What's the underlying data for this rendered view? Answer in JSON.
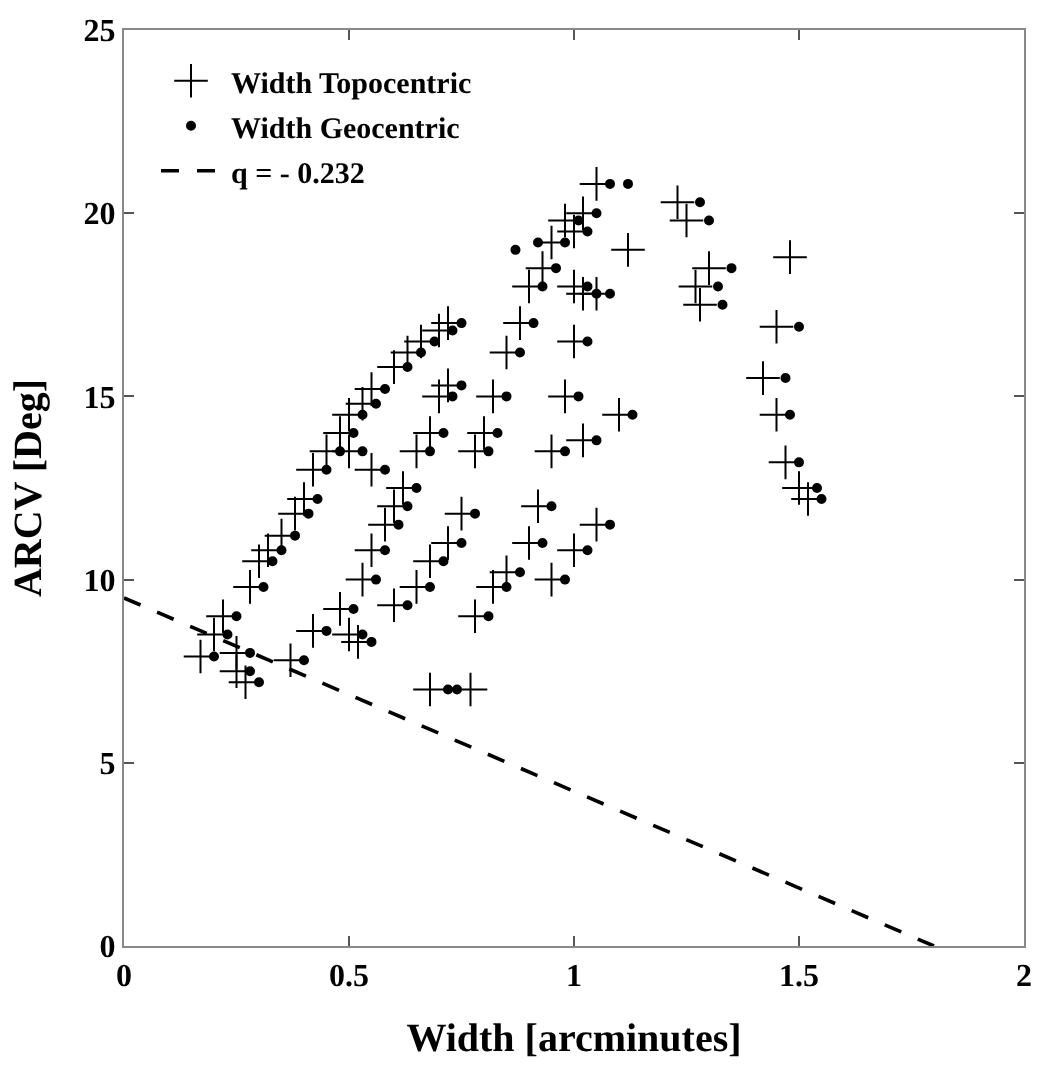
{
  "chart_data": {
    "type": "scatter",
    "xlabel": "Width [arcminutes]",
    "ylabel": "ARCV [Deg]",
    "xlim": [
      0,
      2
    ],
    "xticks": [
      0,
      0.5,
      1,
      1.5,
      2
    ],
    "ylim": [
      0,
      25
    ],
    "yticks": [
      0,
      5,
      10,
      15,
      20,
      25
    ],
    "legend": "top left",
    "series": [
      {
        "name": "Width Topocentric",
        "color": "#000000",
        "marker": "cross",
        "x": [
          0.17,
          0.2,
          0.22,
          0.25,
          0.27,
          0.25,
          0.28,
          0.3,
          0.32,
          0.35,
          0.38,
          0.4,
          0.42,
          0.45,
          0.48,
          0.5,
          0.53,
          0.55,
          0.6,
          0.63,
          0.66,
          0.7,
          0.72,
          0.37,
          0.42,
          0.48,
          0.5,
          0.52,
          0.53,
          0.55,
          0.58,
          0.6,
          0.62,
          0.65,
          0.68,
          0.7,
          0.72,
          0.5,
          0.55,
          0.6,
          0.65,
          0.68,
          0.72,
          0.75,
          0.78,
          0.8,
          0.82,
          0.85,
          0.88,
          0.9,
          0.93,
          0.95,
          0.98,
          1.02,
          1.05,
          1.0,
          0.78,
          0.82,
          0.85,
          0.9,
          0.92,
          0.95,
          0.98,
          1.0,
          1.02,
          1.05,
          1.0,
          1.1,
          1.12,
          0.95,
          1.0,
          1.05,
          1.02,
          1.23,
          1.25,
          1.27,
          1.28,
          1.3,
          1.45,
          1.42,
          1.45,
          1.47,
          1.5,
          1.52,
          1.48,
          0.68,
          0.77
        ],
        "values": [
          7.9,
          8.5,
          9.0,
          7.5,
          7.2,
          8.0,
          9.8,
          10.5,
          10.8,
          11.2,
          11.8,
          12.2,
          13.0,
          13.5,
          14.0,
          14.5,
          14.8,
          15.2,
          15.8,
          16.2,
          16.5,
          16.8,
          17.0,
          7.8,
          8.6,
          9.2,
          8.5,
          8.3,
          10.0,
          10.8,
          11.5,
          12.0,
          12.5,
          13.5,
          14.0,
          15.0,
          15.3,
          13.5,
          13.0,
          9.3,
          9.8,
          10.5,
          11.0,
          11.8,
          13.5,
          14.0,
          15.0,
          16.2,
          17.0,
          18.0,
          18.5,
          19.2,
          19.8,
          20.0,
          20.8,
          19.5,
          9.0,
          9.8,
          10.2,
          11.0,
          12.0,
          13.5,
          15.0,
          16.5,
          17.8,
          17.8,
          18.0,
          14.5,
          19.0,
          10.0,
          10.8,
          11.5,
          13.8,
          20.3,
          19.8,
          18.0,
          17.5,
          18.5,
          16.9,
          15.5,
          14.5,
          13.2,
          12.5,
          12.2,
          18.8,
          7.0,
          7.0
        ]
      },
      {
        "name": "Width Geocentric",
        "color": "#000000",
        "marker": "circle",
        "x": [
          0.2,
          0.23,
          0.25,
          0.28,
          0.3,
          0.28,
          0.31,
          0.33,
          0.35,
          0.38,
          0.41,
          0.43,
          0.45,
          0.48,
          0.51,
          0.53,
          0.56,
          0.58,
          0.63,
          0.66,
          0.69,
          0.73,
          0.75,
          0.4,
          0.45,
          0.51,
          0.53,
          0.55,
          0.56,
          0.58,
          0.61,
          0.63,
          0.65,
          0.68,
          0.71,
          0.73,
          0.75,
          0.53,
          0.58,
          0.63,
          0.68,
          0.71,
          0.75,
          0.78,
          0.81,
          0.83,
          0.85,
          0.88,
          0.91,
          0.93,
          0.96,
          0.98,
          1.01,
          1.05,
          1.08,
          1.03,
          0.81,
          0.85,
          0.88,
          0.93,
          0.95,
          0.98,
          1.01,
          1.03,
          1.05,
          1.08,
          1.03,
          1.13,
          0.98,
          1.03,
          1.08,
          1.05,
          1.28,
          1.3,
          1.32,
          1.33,
          1.35,
          1.5,
          1.47,
          1.48,
          1.5,
          1.54,
          1.55,
          0.72,
          0.74,
          1.12,
          0.92,
          0.87
        ],
        "values": [
          7.9,
          8.5,
          9.0,
          7.5,
          7.2,
          8.0,
          9.8,
          10.5,
          10.8,
          11.2,
          11.8,
          12.2,
          13.0,
          13.5,
          14.0,
          14.5,
          14.8,
          15.2,
          15.8,
          16.2,
          16.5,
          16.8,
          17.0,
          7.8,
          8.6,
          9.2,
          8.5,
          8.3,
          10.0,
          10.8,
          11.5,
          12.0,
          12.5,
          13.5,
          14.0,
          15.0,
          15.3,
          13.5,
          13.0,
          9.3,
          9.8,
          10.5,
          11.0,
          11.8,
          13.5,
          14.0,
          15.0,
          16.2,
          17.0,
          18.0,
          18.5,
          19.2,
          19.8,
          20.0,
          20.8,
          19.5,
          9.0,
          9.8,
          10.2,
          11.0,
          12.0,
          13.5,
          15.0,
          16.5,
          17.8,
          17.8,
          18.0,
          14.5,
          10.0,
          10.8,
          11.5,
          13.8,
          20.3,
          19.8,
          18.0,
          17.5,
          18.5,
          16.9,
          15.5,
          14.5,
          13.2,
          12.5,
          12.2,
          7.0,
          7.0,
          20.8,
          19.2,
          19.0
        ]
      },
      {
        "name": "q = - 0.232",
        "type": "line",
        "color": "#000000",
        "marker": "none",
        "line_style": "dashed",
        "x": [
          0,
          1.8
        ],
        "values": [
          9.5,
          0
        ]
      }
    ]
  }
}
